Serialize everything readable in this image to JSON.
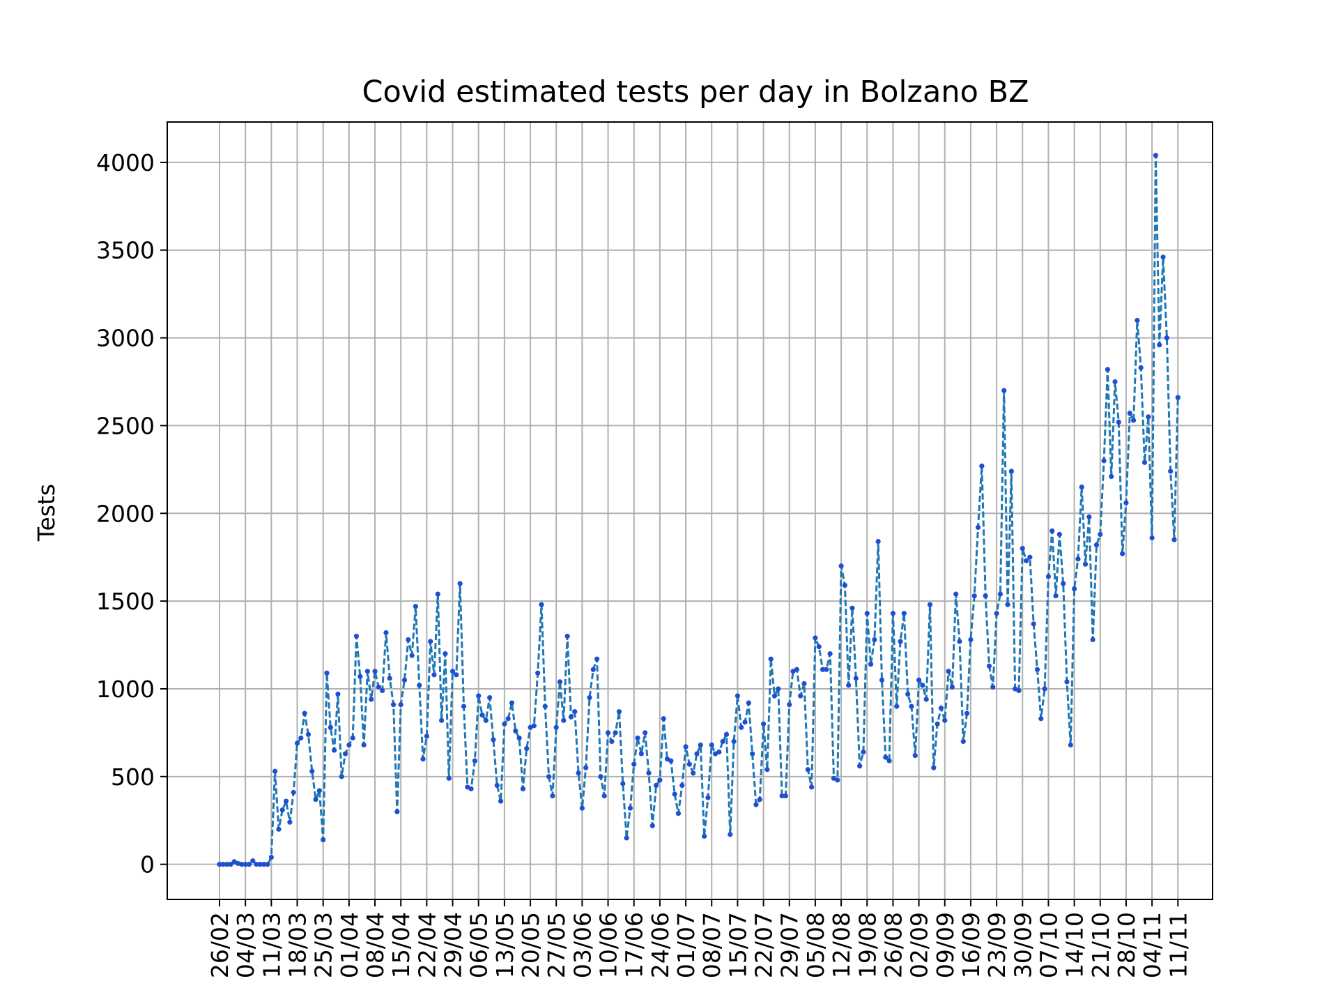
{
  "chart_data": {
    "type": "line",
    "title": "Covid estimated tests per day in Bolzano BZ",
    "xlabel": "",
    "ylabel": "Tests",
    "ylim": [
      -200,
      4230
    ],
    "yticks": [
      0,
      500,
      1000,
      1500,
      2000,
      2500,
      3000,
      3500,
      4000
    ],
    "grid": true,
    "line_style": "dashed",
    "marker": "dot",
    "color": "#1f77b4",
    "marker_color": "#1f4fd0",
    "tick_labels": [
      "26/02",
      "04/03",
      "11/03",
      "18/03",
      "25/03",
      "01/04",
      "08/04",
      "15/04",
      "22/04",
      "29/04",
      "06/05",
      "13/05",
      "20/05",
      "27/05",
      "03/06",
      "10/06",
      "17/06",
      "24/06",
      "01/07",
      "08/07",
      "15/07",
      "22/07",
      "29/07",
      "05/08",
      "12/08",
      "19/08",
      "26/08",
      "02/09",
      "09/09",
      "16/09",
      "23/09",
      "30/09",
      "07/10",
      "14/10",
      "21/10",
      "28/10",
      "04/11",
      "11/11"
    ],
    "start_label": "26/02",
    "values": [
      0,
      0,
      0,
      0,
      15,
      5,
      0,
      0,
      0,
      20,
      0,
      0,
      0,
      0,
      40,
      530,
      200,
      310,
      360,
      240,
      410,
      690,
      720,
      860,
      740,
      530,
      370,
      420,
      140,
      1090,
      780,
      650,
      970,
      500,
      630,
      680,
      720,
      1300,
      1070,
      680,
      1100,
      940,
      1100,
      1010,
      990,
      1320,
      1060,
      910,
      300,
      910,
      1050,
      1280,
      1190,
      1470,
      1020,
      600,
      730,
      1270,
      1080,
      1540,
      820,
      1200,
      490,
      1100,
      1080,
      1600,
      900,
      440,
      430,
      590,
      960,
      850,
      820,
      950,
      710,
      450,
      360,
      800,
      830,
      920,
      760,
      720,
      430,
      660,
      780,
      790,
      1090,
      1480,
      900,
      500,
      390,
      780,
      1040,
      820,
      1300,
      840,
      870,
      520,
      320,
      550,
      950,
      1110,
      1170,
      500,
      390,
      750,
      700,
      750,
      870,
      460,
      150,
      320,
      570,
      720,
      630,
      750,
      520,
      220,
      450,
      480,
      830,
      600,
      590,
      400,
      290,
      450,
      670,
      570,
      520,
      630,
      680,
      160,
      380,
      680,
      630,
      640,
      700,
      740,
      170,
      700,
      960,
      780,
      810,
      920,
      630,
      340,
      370,
      800,
      540,
      1170,
      960,
      1000,
      390,
      390,
      910,
      1100,
      1110,
      960,
      1030,
      540,
      440,
      1290,
      1240,
      1110,
      1110,
      1200,
      490,
      480,
      1700,
      1590,
      1020,
      1460,
      1060,
      560,
      640,
      1430,
      1140,
      1280,
      1840,
      1050,
      610,
      590,
      1430,
      900,
      1270,
      1430,
      970,
      900,
      620,
      1050,
      1020,
      940,
      1480,
      550,
      800,
      890,
      820,
      1100,
      1010,
      1540,
      1270,
      700,
      860,
      1280,
      1530,
      1920,
      2270,
      1530,
      1130,
      1010,
      1430,
      1540,
      2700,
      1480,
      2240,
      1000,
      990,
      1800,
      1730,
      1750,
      1370,
      1110,
      830,
      1000,
      1640,
      1900,
      1530,
      1880,
      1600,
      1040,
      680,
      1570,
      1740,
      2150,
      1710,
      1980,
      1280,
      1820,
      1880,
      2300,
      2820,
      2210,
      2750,
      2520,
      1770,
      2060,
      2570,
      2530,
      3100,
      2830,
      2290,
      2550,
      1860,
      4040,
      2960,
      3460,
      3000,
      2240,
      1850,
      2660
    ]
  }
}
